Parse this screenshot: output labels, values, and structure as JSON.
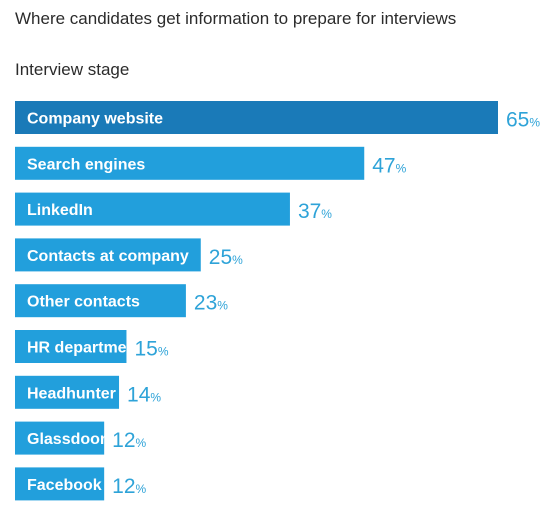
{
  "header": {
    "title": "Where candidates get information to prepare for interviews",
    "subtitle": "Interview stage"
  },
  "colors": {
    "highlight": "#1a7ab8",
    "bar": "#229fdc",
    "value_text": "#2ea3d8"
  },
  "chart_data": {
    "type": "bar",
    "orientation": "horizontal",
    "title": "Where candidates get information to prepare for interviews",
    "subtitle": "Interview stage",
    "unit": "%",
    "categories": [
      "Company website",
      "Search engines",
      "LinkedIn",
      "Contacts at company",
      "Other contacts",
      "HR department",
      "Headhunter",
      "Glassdoor",
      "Facebook"
    ],
    "values": [
      65,
      47,
      37,
      25,
      23,
      15,
      14,
      12,
      12
    ],
    "xlim": [
      0,
      65
    ],
    "grid": false,
    "legend": "none"
  }
}
